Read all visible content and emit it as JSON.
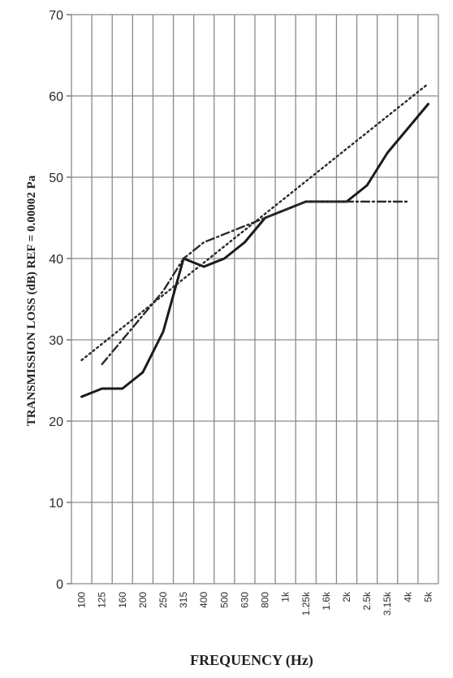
{
  "chart_data": {
    "type": "line",
    "xlabel": "FREQUENCY (Hz)",
    "ylabel": "TRANSMISSION LOSS (dB) REF = 0.00002 Pa",
    "ylim": [
      0,
      70
    ],
    "yticks": [
      0,
      10,
      20,
      30,
      40,
      50,
      60,
      70
    ],
    "grid": true,
    "categories": [
      "100",
      "125",
      "160",
      "200",
      "250",
      "315",
      "400",
      "500",
      "630",
      "800",
      "1k",
      "1.25k",
      "1.6k",
      "2k",
      "2.5k",
      "3.15k",
      "4k",
      "5k"
    ],
    "series": [
      {
        "style": "solid",
        "color": "#1a1a1a",
        "values": [
          23,
          24,
          24,
          26,
          31,
          40,
          39,
          40,
          42,
          45,
          46,
          47,
          47,
          47,
          49,
          53,
          56,
          59
        ]
      },
      {
        "style": "dotted",
        "color": "#2a2a2a",
        "points": [
          {
            "x": "100",
            "y": 27.5
          },
          {
            "x": "5k",
            "y": 61.5
          }
        ]
      },
      {
        "style": "dash-dot",
        "color": "#2a2a2a",
        "values": [
          null,
          27,
          30,
          33,
          36,
          40,
          42,
          43,
          44,
          45,
          46,
          47,
          47,
          47,
          47,
          47,
          47,
          null
        ]
      }
    ]
  }
}
